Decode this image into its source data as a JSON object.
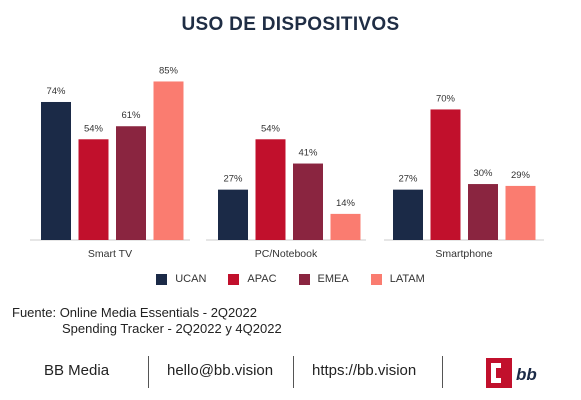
{
  "chart_data": {
    "type": "bar",
    "title": "USO DE DISPOSITIVOS",
    "categories": [
      "Smart TV",
      "PC/Notebook",
      "Smartphone"
    ],
    "series": [
      {
        "name": "UCAN",
        "values": [
          74,
          27,
          27
        ],
        "color": "#1b2a47"
      },
      {
        "name": "APAC",
        "values": [
          54,
          54,
          70
        ],
        "color": "#c1102c"
      },
      {
        "name": "EMEA",
        "values": [
          61,
          41,
          30
        ],
        "color": "#8a2540"
      },
      {
        "name": "LATAM",
        "values": [
          85,
          14,
          29
        ],
        "color": "#fa7c70"
      }
    ],
    "value_suffix": "%",
    "ylim": [
      0,
      100
    ],
    "grid": false,
    "legend_position": "bottom"
  },
  "source": {
    "line1": "Fuente: Online Media Essentials - 2Q2022",
    "line2": "Spending Tracker - 2Q2022 y 4Q2022"
  },
  "footer": {
    "company": "BB Media",
    "email": "hello@bb.vision",
    "website": "https://bb.vision",
    "logo_text": "bb",
    "logo_color": "#c1102c"
  }
}
